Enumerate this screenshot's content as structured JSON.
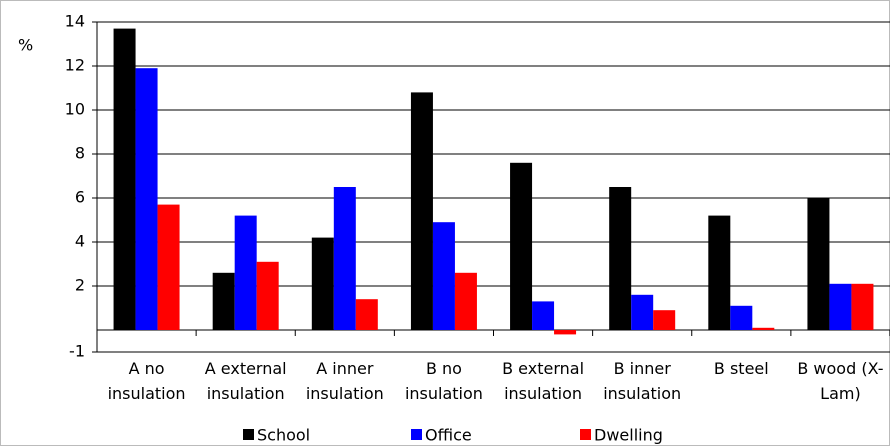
{
  "chart_data": {
    "type": "bar",
    "y_label": "%",
    "categories": [
      "A no insulation",
      "A external insulation",
      "A inner insulation",
      "B no insulation",
      "B external insulation",
      "B inner insulation",
      "B steel",
      "B wood (X-Lam)"
    ],
    "series": [
      {
        "name": "School",
        "color": "#000000",
        "values": [
          13.7,
          2.6,
          4.2,
          10.8,
          7.6,
          6.5,
          5.2,
          6.0
        ]
      },
      {
        "name": "Office",
        "color": "#0000ff",
        "values": [
          11.9,
          5.2,
          6.5,
          4.9,
          1.3,
          1.6,
          1.1,
          2.1
        ]
      },
      {
        "name": "Dwelling",
        "color": "#ff0000",
        "values": [
          5.7,
          3.1,
          1.4,
          2.6,
          -0.2,
          0.9,
          0.1,
          2.1
        ]
      }
    ],
    "ylim": [
      -1,
      14
    ],
    "yticks": [
      -1,
      2,
      4,
      6,
      8,
      10,
      12,
      14
    ],
    "grid": true
  }
}
